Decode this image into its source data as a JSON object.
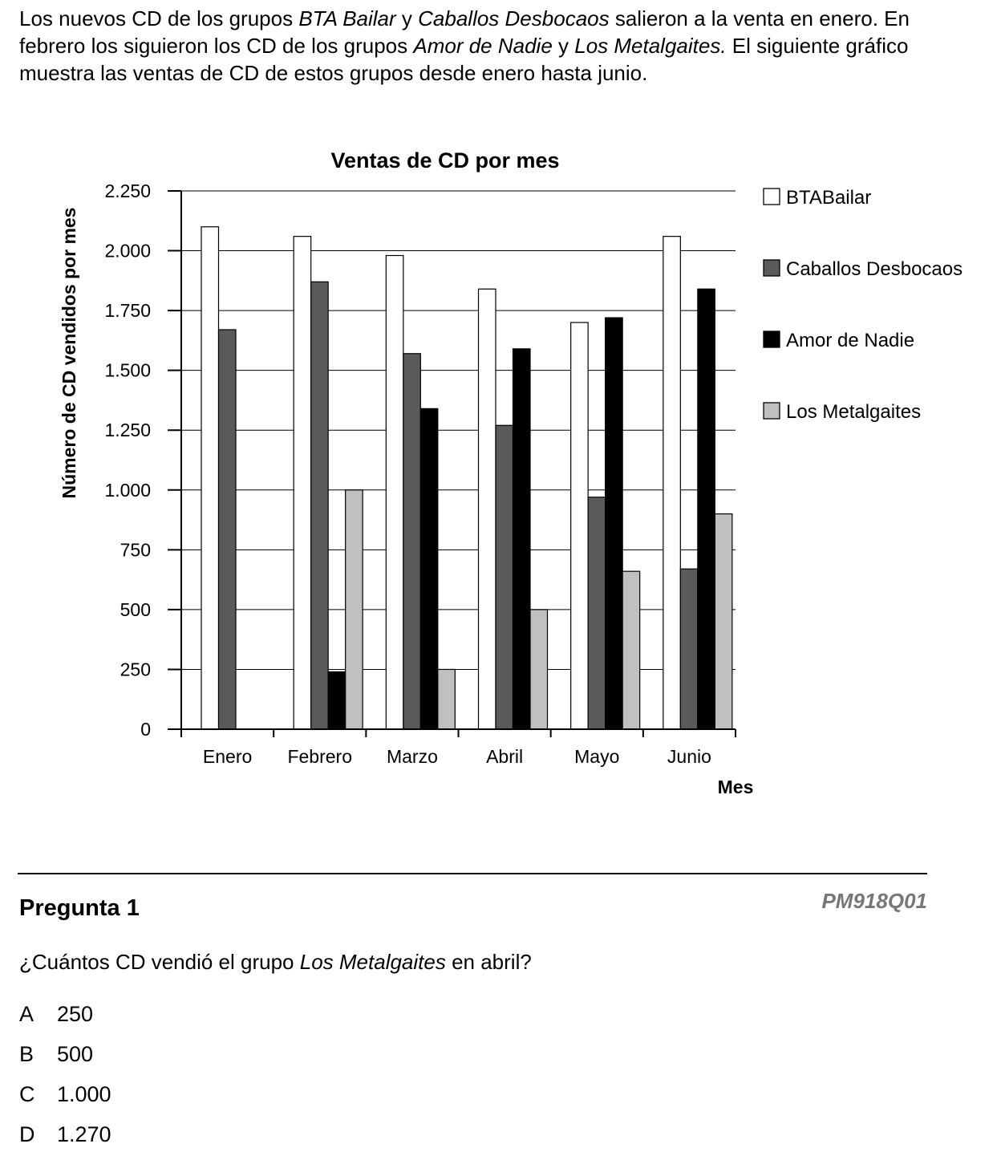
{
  "intro": {
    "p1": "Los nuevos CD de los grupos ",
    "band1": "BTA Bailar",
    "p2": " y ",
    "band2": "Caballos Desbocaos",
    "p3": " salieron a la venta en enero. En febrero los siguieron los CD de los grupos ",
    "band3": "Amor de Nadie",
    "p4": " y ",
    "band4": "Los Metalgaites.",
    "p5": " El siguiente gráfico muestra las ventas de CD de estos grupos desde enero hasta junio."
  },
  "chart_data": {
    "type": "bar",
    "title": "Ventas de CD por mes",
    "xlabel": "Mes",
    "ylabel": "Número de CD vendidos por mes",
    "ylim": [
      0,
      2250
    ],
    "yticks": [
      0,
      250,
      500,
      750,
      1000,
      1250,
      1500,
      1750,
      2000,
      2250
    ],
    "ytick_labels": [
      "0",
      "250",
      "500",
      "750",
      "1.000",
      "1.250",
      "1.500",
      "1.750",
      "2.000",
      "2.250"
    ],
    "categories": [
      "Enero",
      "Febrero",
      "Marzo",
      "Abril",
      "Mayo",
      "Junio"
    ],
    "grid": "horizontal",
    "legend_position": "right",
    "series": [
      {
        "name": "BTABailar",
        "color": "#ffffff",
        "values": [
          2100,
          2060,
          1980,
          1840,
          1700,
          2060
        ]
      },
      {
        "name": "Caballos Desbocaos",
        "color": "#5a5a5a",
        "values": [
          1670,
          1870,
          1570,
          1270,
          970,
          670
        ]
      },
      {
        "name": "Amor de Nadie",
        "color": "#000000",
        "values": [
          0,
          240,
          1340,
          1590,
          1720,
          1840
        ]
      },
      {
        "name": "Los Metalgaites",
        "color": "#c0c0c0",
        "values": [
          0,
          1000,
          250,
          500,
          660,
          900
        ]
      }
    ]
  },
  "question": {
    "title": "Pregunta 1",
    "code": "PM918Q01",
    "text_a": "¿Cuántos CD vendió el grupo ",
    "text_band": "Los Metalgaites",
    "text_b": " en abril?",
    "options": [
      {
        "letter": "A",
        "value": "250"
      },
      {
        "letter": "B",
        "value": "500"
      },
      {
        "letter": "C",
        "value": "1.000"
      },
      {
        "letter": "D",
        "value": "1.270"
      }
    ]
  }
}
